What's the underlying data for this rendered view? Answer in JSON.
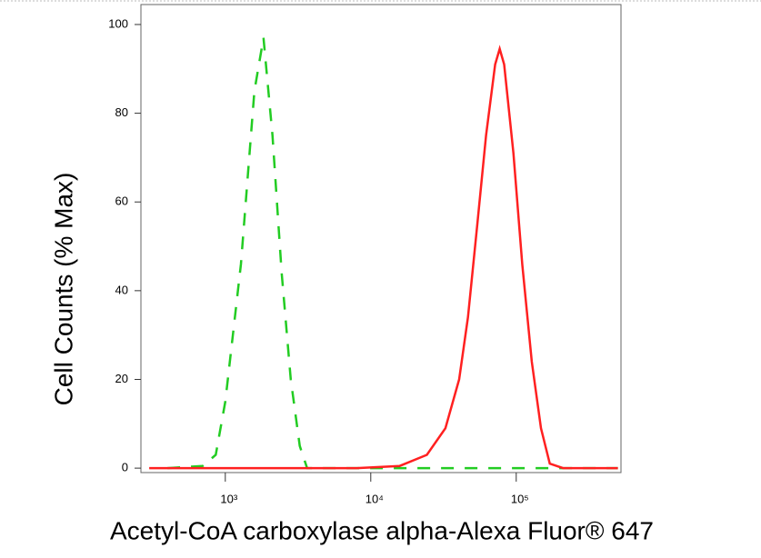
{
  "chart_data": {
    "type": "line",
    "xlabel": "Acetyl-CoA carboxylase alpha-Alexa Fluor® 647",
    "ylabel": "Cell Counts (% Max)",
    "xscale": "log",
    "xlim": [
      263,
      525000
    ],
    "ylim": [
      -1,
      104.5
    ],
    "xticks": [
      {
        "value": 1000,
        "label": "10³"
      },
      {
        "value": 10000,
        "label": "10⁴"
      },
      {
        "value": 100000,
        "label": "10⁵"
      }
    ],
    "yticks": [
      0,
      20,
      40,
      60,
      80,
      100
    ],
    "series": [
      {
        "color": "#22cc22",
        "dashed": true,
        "x": [
          400,
          700,
          860,
          1000,
          1280,
          1585,
          1830,
          2110,
          2440,
          2820,
          3250,
          3650,
          10000,
          100000,
          500000
        ],
        "values": [
          0,
          0.5,
          3,
          15,
          46,
          85,
          97,
          75,
          44,
          20,
          5,
          0,
          0,
          0,
          0
        ]
      },
      {
        "color": "#ff2020",
        "dashed": false,
        "x": [
          300,
          8000,
          15800,
          24300,
          32600,
          40500,
          46600,
          54000,
          62000,
          71600,
          77000,
          82600,
          95600,
          110000,
          128000,
          148000,
          170000,
          210000,
          500000
        ],
        "values": [
          0,
          0,
          0.5,
          3,
          9,
          20,
          34,
          55,
          75,
          91,
          94.5,
          91,
          71,
          46,
          24,
          9,
          1,
          0,
          0
        ]
      }
    ]
  }
}
